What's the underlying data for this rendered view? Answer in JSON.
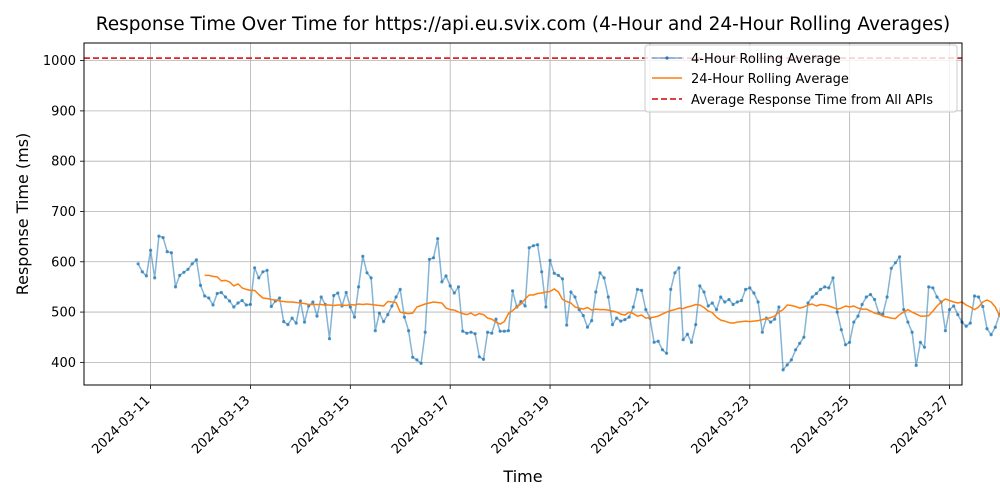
{
  "chart_data": {
    "type": "line",
    "title": "Response Time Over Time for https://api.eu.svix.com (4-Hour and 24-Hour Rolling Averages)",
    "xlabel": "Time",
    "ylabel": "Response Time (ms)",
    "x_range": [
      "2024-03-09T16:00",
      "2024-03-27T06:00"
    ],
    "ylim": [
      355,
      1035
    ],
    "x_ticks": [
      "2024-03-11",
      "2024-03-13",
      "2024-03-15",
      "2024-03-17",
      "2024-03-19",
      "2024-03-21",
      "2024-03-23",
      "2024-03-25",
      "2024-03-27"
    ],
    "y_ticks": [
      400,
      500,
      600,
      700,
      800,
      900,
      1000
    ],
    "grid": true,
    "legend_position": "top-right",
    "colors": {
      "four_hour": "#1f77b4",
      "twenty_four_hour": "#ff7f0e",
      "reference": "#d62728"
    },
    "legend": {
      "four_hour": "4-Hour Rolling Average",
      "twenty_four_hour": "24-Hour Rolling Average",
      "reference": "Average Response Time from All APIs"
    },
    "reference_line": {
      "name": "Average Response Time from All APIs",
      "value": 1005
    },
    "series": [
      {
        "name": "4-Hour Rolling Average",
        "style": "line-with-markers",
        "x_start": "2024-03-10T18:00",
        "step_hours": 2,
        "values": [
          596,
          580,
          572,
          623,
          568,
          651,
          648,
          620,
          618,
          550,
          573,
          579,
          585,
          596,
          604,
          553,
          532,
          528,
          514,
          537,
          539,
          530,
          522,
          510,
          518,
          523,
          514,
          515,
          588,
          568,
          580,
          583,
          511,
          522,
          528,
          481,
          475,
          488,
          478,
          522,
          480,
          512,
          520,
          492,
          530,
          515,
          447,
          533,
          538,
          512,
          539,
          510,
          490,
          550,
          611,
          578,
          568,
          463,
          498,
          481,
          495,
          512,
          530,
          545,
          490,
          463,
          410,
          405,
          398,
          460,
          605,
          608,
          646,
          560,
          572,
          552,
          538,
          550,
          462,
          458,
          460,
          457,
          411,
          406,
          460,
          458,
          486,
          462,
          462,
          463,
          542,
          510,
          521,
          512,
          628,
          632,
          634,
          580,
          510,
          603,
          577,
          573,
          566,
          474,
          540,
          530,
          505,
          493,
          470,
          483,
          540,
          578,
          568,
          530,
          475,
          488,
          482,
          485,
          490,
          510,
          545,
          543,
          505,
          488,
          440,
          442,
          425,
          418,
          545,
          578,
          588,
          445,
          456,
          440,
          475,
          552,
          540,
          512,
          518,
          505,
          530,
          520,
          525,
          515,
          520,
          523,
          545,
          548,
          538,
          520,
          460,
          488,
          480,
          486,
          510,
          385,
          395,
          405,
          425,
          438,
          450,
          518,
          530,
          537,
          545,
          550,
          548,
          568,
          500,
          465,
          435,
          440,
          480,
          492,
          515,
          530,
          535,
          525,
          498,
          496,
          530,
          587,
          598,
          610,
          505,
          480,
          460,
          394,
          440,
          430,
          550,
          548,
          530,
          520,
          463,
          505,
          512,
          495,
          480,
          472,
          478,
          532,
          530,
          511,
          467,
          455,
          470,
          495,
          550,
          552,
          558,
          560,
          456,
          452,
          408,
          465,
          510,
          553,
          652,
          680,
          640,
          545,
          478,
          432,
          452,
          426,
          454,
          472,
          495,
          538,
          450,
          432,
          455,
          583,
          551,
          548,
          464,
          465,
          482,
          451,
          462,
          470,
          422,
          499,
          485,
          495,
          480,
          524,
          530,
          470,
          455,
          462,
          480,
          508,
          510,
          465,
          470,
          465,
          510,
          575,
          534,
          525,
          518,
          455,
          456
        ]
      },
      {
        "name": "24-Hour Rolling Average",
        "style": "line",
        "x_start": "2024-03-12T02:00",
        "step_hours": 2,
        "values": [
          573,
          573,
          571,
          570,
          562,
          563,
          560,
          552,
          556,
          548,
          545,
          543,
          543,
          535,
          528,
          527,
          525,
          524,
          522,
          521,
          520,
          520,
          519,
          518,
          517,
          515,
          515,
          515,
          515,
          514,
          514,
          513,
          514,
          514,
          513,
          515,
          514,
          516,
          515,
          516,
          515,
          514,
          513,
          512,
          521,
          520,
          519,
          500,
          498,
          497,
          498,
          510,
          513,
          516,
          518,
          520,
          519,
          518,
          508,
          505,
          504,
          500,
          497,
          495,
          498,
          493,
          497,
          495,
          488,
          486,
          480,
          476,
          481,
          497,
          503,
          510,
          516,
          526,
          534,
          534,
          537,
          538,
          540,
          541,
          546,
          540,
          525,
          521,
          518,
          510,
          508,
          506,
          509,
          504,
          506,
          505,
          505,
          504,
          502,
          500,
          496,
          494,
          500,
          497,
          492,
          494,
          488,
          489,
          490,
          492,
          496,
          500,
          503,
          505,
          508,
          507,
          510,
          512,
          515,
          514,
          509,
          502,
          499,
          490,
          484,
          482,
          479,
          478,
          480,
          481,
          482,
          481,
          482,
          483,
          485,
          487,
          489,
          492,
          500,
          505,
          514,
          513,
          511,
          508,
          510,
          514,
          516,
          512,
          515,
          514,
          512,
          509,
          506,
          508,
          512,
          510,
          512,
          508,
          506,
          506,
          502,
          498,
          496,
          492,
          490,
          488,
          487,
          495,
          500,
          505,
          500,
          496,
          492,
          492,
          493,
          502,
          512,
          520,
          526,
          523,
          520,
          518,
          520,
          514,
          510,
          505,
          510,
          520,
          524,
          520,
          510,
          493,
          485,
          480,
          479,
          480,
          478,
          482,
          484,
          487,
          486,
          489,
          490,
          488,
          480,
          475,
          472,
          470,
          474,
          478,
          490,
          494,
          496,
          498,
          494
        ]
      }
    ]
  }
}
